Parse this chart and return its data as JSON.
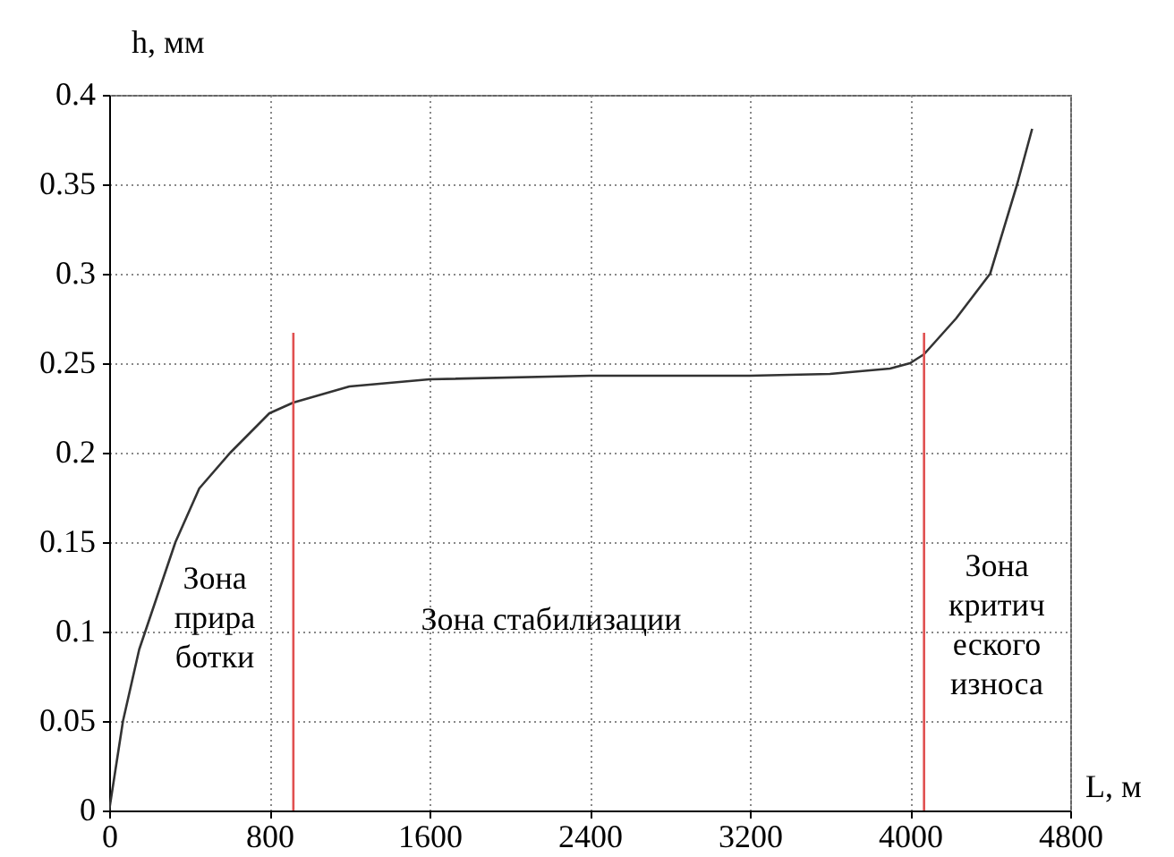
{
  "chart_data": {
    "type": "line",
    "xlabel": "L, м",
    "ylabel": "h, мм",
    "xlim": [
      0,
      4800
    ],
    "xticks": [
      0,
      800,
      1600,
      2400,
      3200,
      4000,
      4800
    ],
    "ylim": [
      0,
      0.4
    ],
    "yticks": [
      0,
      0.05,
      0.1,
      0.15,
      0.2,
      0.25,
      0.3,
      0.35,
      0.4
    ],
    "grid": true,
    "marker": "none",
    "line_style": "solid",
    "series": [
      {
        "color": "#333333",
        "x": [
          0,
          69,
          150,
          331,
          450,
          605,
          800,
          920,
          1200,
          1600,
          2400,
          3200,
          3600,
          3900,
          4000,
          4070,
          4230,
          4400,
          4535,
          4610
        ],
        "values": [
          0,
          0.05,
          0.09,
          0.15,
          0.18,
          0.2,
          0.222,
          0.228,
          0.237,
          0.241,
          0.243,
          0.243,
          0.244,
          0.247,
          0.25,
          0.255,
          0.275,
          0.3,
          0.35,
          0.381
        ]
      },
      {
        "color": "#e05050",
        "x": [
          920,
          920
        ],
        "values": [
          0,
          0.267
        ]
      },
      {
        "color": "#e05050",
        "x": [
          4070,
          4070
        ],
        "values": [
          0,
          0.267
        ]
      }
    ],
    "annotations": [
      "Зона\nприра\nботки",
      "Зона стабилизации",
      "Зона\nкритич\nеского\nизноса"
    ]
  }
}
